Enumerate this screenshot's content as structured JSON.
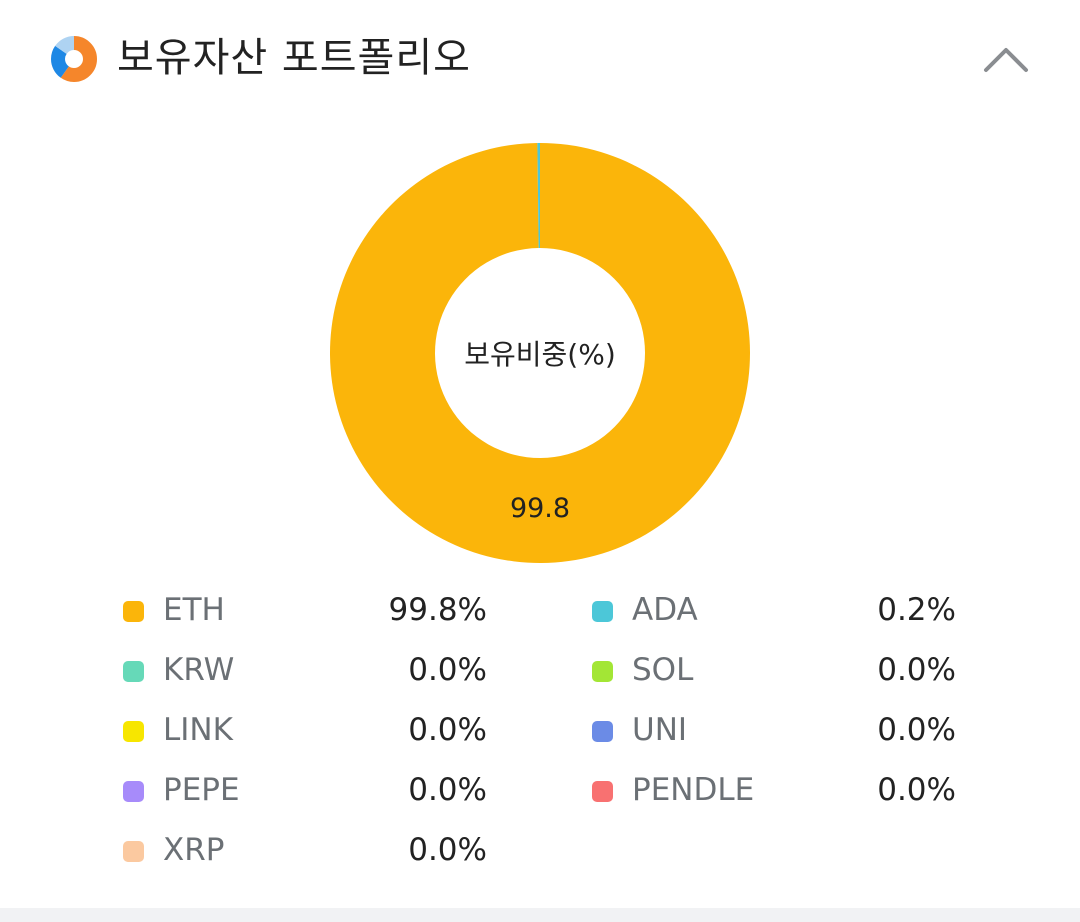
{
  "header": {
    "title": "보유자산 포트폴리오",
    "icon": "donut-chart-icon",
    "collapse_icon": "chevron-up-icon"
  },
  "chart": {
    "center_label": "보유비중(%)",
    "value_label": "99.8"
  },
  "legend": [
    {
      "name": "ETH",
      "value": "99.8%",
      "color": "#FBB50A"
    },
    {
      "name": "ADA",
      "value": "0.2%",
      "color": "#4CC7D8"
    },
    {
      "name": "KRW",
      "value": "0.0%",
      "color": "#66D9B8"
    },
    {
      "name": "SOL",
      "value": "0.0%",
      "color": "#A3E635"
    },
    {
      "name": "LINK",
      "value": "0.0%",
      "color": "#F7E600"
    },
    {
      "name": "UNI",
      "value": "0.0%",
      "color": "#6B8BE6"
    },
    {
      "name": "PEPE",
      "value": "0.0%",
      "color": "#A78BFA"
    },
    {
      "name": "PENDLE",
      "value": "0.0%",
      "color": "#F87171"
    },
    {
      "name": "XRP",
      "value": "0.0%",
      "color": "#FBC9A0"
    }
  ],
  "colors": {
    "accent": "#FBB50A",
    "title_text": "#222222",
    "label_text": "#6b7075",
    "footer_bg": "#f1f2f4"
  },
  "chart_data": {
    "type": "pie",
    "title": "보유자산 포트폴리오",
    "subtitle": "보유비중(%)",
    "donut": true,
    "categories": [
      "ETH",
      "ADA",
      "KRW",
      "SOL",
      "LINK",
      "UNI",
      "PEPE",
      "PENDLE",
      "XRP"
    ],
    "values": [
      99.8,
      0.2,
      0.0,
      0.0,
      0.0,
      0.0,
      0.0,
      0.0,
      0.0
    ],
    "unit": "%",
    "annotations": [
      "99.8"
    ],
    "legend_position": "bottom"
  }
}
